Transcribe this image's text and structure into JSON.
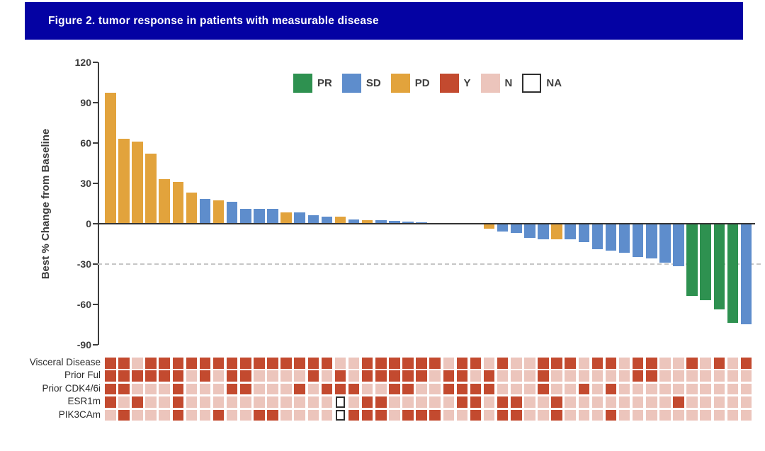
{
  "title_bar": {
    "text": "Figure 2. tumor response in patients with measurable disease",
    "background": "#0402a3",
    "text_color": "#ffffff"
  },
  "legend": {
    "items": [
      {
        "label": "PR",
        "color": "#2e9150",
        "border": null
      },
      {
        "label": "SD",
        "color": "#5e8dcc",
        "border": null
      },
      {
        "label": "PD",
        "color": "#e2a33c",
        "border": null
      },
      {
        "label": "Y",
        "color": "#c34a2f",
        "border": null
      },
      {
        "label": "N",
        "color": "#ecc5bc",
        "border": null
      },
      {
        "label": "NA",
        "color": "#ffffff",
        "border": "#2f2f2f"
      }
    ]
  },
  "chart_data": {
    "type": "bar",
    "title": "Figure 2. tumor response in patients with measurable disease",
    "xlabel": "",
    "ylabel": "Best % Change from Baseline",
    "ylim": [
      -90,
      120
    ],
    "yticks": [
      120,
      90,
      60,
      30,
      0,
      -30,
      -60,
      -90
    ],
    "grid": false,
    "legend_position": "top-center",
    "reference_lines": [
      {
        "y": 0,
        "style": "solid",
        "color": "#333333"
      },
      {
        "y": -30,
        "style": "dashed",
        "color": "#c6c6c6"
      }
    ],
    "response_colors": {
      "PR": "#2e9150",
      "SD": "#5e8dcc",
      "PD": "#e2a33c"
    },
    "bars": [
      {
        "value": 97,
        "response": "PD"
      },
      {
        "value": 63,
        "response": "PD"
      },
      {
        "value": 61,
        "response": "PD"
      },
      {
        "value": 52,
        "response": "PD"
      },
      {
        "value": 33,
        "response": "PD"
      },
      {
        "value": 31,
        "response": "PD"
      },
      {
        "value": 23,
        "response": "PD"
      },
      {
        "value": 18,
        "response": "SD"
      },
      {
        "value": 17,
        "response": "PD"
      },
      {
        "value": 16,
        "response": "SD"
      },
      {
        "value": 11,
        "response": "SD"
      },
      {
        "value": 11,
        "response": "SD"
      },
      {
        "value": 11,
        "response": "SD"
      },
      {
        "value": 8,
        "response": "PD"
      },
      {
        "value": 8,
        "response": "SD"
      },
      {
        "value": 6,
        "response": "SD"
      },
      {
        "value": 5,
        "response": "SD"
      },
      {
        "value": 5,
        "response": "PD"
      },
      {
        "value": 3,
        "response": "SD"
      },
      {
        "value": 2.5,
        "response": "PD"
      },
      {
        "value": 2.5,
        "response": "SD"
      },
      {
        "value": 2,
        "response": "SD"
      },
      {
        "value": 1.5,
        "response": "SD"
      },
      {
        "value": 1,
        "response": "SD"
      },
      {
        "value": 0,
        "response": "SD"
      },
      {
        "value": 0,
        "response": "SD"
      },
      {
        "value": 0,
        "response": "SD"
      },
      {
        "value": 0,
        "response": "SD"
      },
      {
        "value": -4,
        "response": "PD"
      },
      {
        "value": -6,
        "response": "SD"
      },
      {
        "value": -7,
        "response": "SD"
      },
      {
        "value": -11,
        "response": "SD"
      },
      {
        "value": -12,
        "response": "SD"
      },
      {
        "value": -12,
        "response": "PD"
      },
      {
        "value": -12,
        "response": "SD"
      },
      {
        "value": -14,
        "response": "SD"
      },
      {
        "value": -19,
        "response": "SD"
      },
      {
        "value": -20,
        "response": "SD"
      },
      {
        "value": -22,
        "response": "SD"
      },
      {
        "value": -25,
        "response": "SD"
      },
      {
        "value": -26,
        "response": "SD"
      },
      {
        "value": -29,
        "response": "SD"
      },
      {
        "value": -32,
        "response": "SD"
      },
      {
        "value": -54,
        "response": "PR"
      },
      {
        "value": -57,
        "response": "PR"
      },
      {
        "value": -64,
        "response": "PR"
      },
      {
        "value": -74,
        "response": "PR"
      },
      {
        "value": -75,
        "response": "SD"
      }
    ],
    "heatmap": {
      "value_colors": {
        "Y": "#c34a2f",
        "N": "#ecc5bc",
        "NA": "#ffffff"
      },
      "na_border": "#2f2f2f",
      "rows": [
        {
          "label": "Visceral Disease",
          "values": [
            "Y",
            "Y",
            "N",
            "Y",
            "Y",
            "Y",
            "Y",
            "Y",
            "Y",
            "Y",
            "Y",
            "Y",
            "Y",
            "Y",
            "Y",
            "Y",
            "Y",
            "N",
            "N",
            "Y",
            "Y",
            "Y",
            "Y",
            "Y",
            "Y",
            "N",
            "Y",
            "Y",
            "N",
            "Y",
            "N",
            "N",
            "Y",
            "Y",
            "Y",
            "N",
            "Y",
            "Y",
            "N",
            "Y",
            "Y",
            "N",
            "N",
            "Y",
            "N",
            "Y",
            "N",
            "Y"
          ]
        },
        {
          "label": "Prior Ful",
          "values": [
            "Y",
            "Y",
            "Y",
            "Y",
            "Y",
            "Y",
            "N",
            "Y",
            "N",
            "Y",
            "Y",
            "N",
            "N",
            "N",
            "N",
            "Y",
            "N",
            "Y",
            "N",
            "Y",
            "Y",
            "Y",
            "Y",
            "Y",
            "N",
            "Y",
            "Y",
            "N",
            "Y",
            "N",
            "N",
            "N",
            "Y",
            "N",
            "N",
            "N",
            "N",
            "N",
            "N",
            "Y",
            "Y",
            "N",
            "N",
            "N",
            "N",
            "N",
            "N",
            "N"
          ]
        },
        {
          "label": "Prior CDK4/6i",
          "values": [
            "Y",
            "Y",
            "N",
            "N",
            "N",
            "Y",
            "N",
            "N",
            "N",
            "Y",
            "Y",
            "N",
            "N",
            "N",
            "Y",
            "N",
            "Y",
            "Y",
            "Y",
            "N",
            "N",
            "Y",
            "Y",
            "N",
            "N",
            "Y",
            "Y",
            "Y",
            "Y",
            "N",
            "N",
            "N",
            "Y",
            "N",
            "N",
            "Y",
            "N",
            "Y",
            "N",
            "N",
            "N",
            "N",
            "N",
            "N",
            "N",
            "N",
            "N",
            "N"
          ]
        },
        {
          "label": "ESR1m",
          "values": [
            "Y",
            "N",
            "Y",
            "N",
            "N",
            "Y",
            "N",
            "N",
            "N",
            "N",
            "N",
            "N",
            "N",
            "N",
            "N",
            "N",
            "N",
            "NA",
            "N",
            "Y",
            "Y",
            "N",
            "N",
            "N",
            "N",
            "N",
            "Y",
            "Y",
            "N",
            "Y",
            "Y",
            "N",
            "N",
            "Y",
            "N",
            "N",
            "N",
            "N",
            "N",
            "N",
            "N",
            "N",
            "Y",
            "N",
            "N",
            "N",
            "N",
            "N"
          ]
        },
        {
          "label": "PIK3CAm",
          "values": [
            "N",
            "Y",
            "N",
            "N",
            "N",
            "Y",
            "N",
            "N",
            "Y",
            "N",
            "N",
            "Y",
            "Y",
            "N",
            "N",
            "N",
            "N",
            "NA",
            "Y",
            "Y",
            "Y",
            "N",
            "Y",
            "Y",
            "Y",
            "N",
            "N",
            "Y",
            "N",
            "Y",
            "Y",
            "N",
            "N",
            "Y",
            "N",
            "N",
            "N",
            "Y",
            "N",
            "N",
            "N",
            "N",
            "N",
            "N",
            "N",
            "N",
            "N",
            "N"
          ]
        }
      ]
    }
  }
}
